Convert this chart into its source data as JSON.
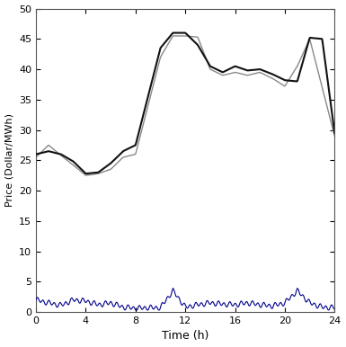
{
  "hours": [
    0,
    1,
    2,
    3,
    4,
    5,
    6,
    7,
    8,
    9,
    10,
    11,
    12,
    13,
    14,
    15,
    16,
    17,
    18,
    19,
    20,
    21,
    22,
    23,
    24
  ],
  "actual": [
    25.5,
    27.5,
    25.8,
    24.2,
    22.5,
    22.8,
    23.5,
    25.5,
    26.0,
    34.0,
    42.0,
    45.5,
    45.5,
    45.3,
    40.0,
    39.0,
    39.5,
    39.0,
    39.5,
    38.5,
    37.2,
    40.5,
    45.0,
    37.0,
    29.0
  ],
  "forecast": [
    26.0,
    26.5,
    26.0,
    24.8,
    22.8,
    23.0,
    24.5,
    26.5,
    27.5,
    35.5,
    43.5,
    46.0,
    46.0,
    44.0,
    40.5,
    39.5,
    40.5,
    39.8,
    40.0,
    39.2,
    38.2,
    38.0,
    45.2,
    45.0,
    29.5
  ],
  "error_hours": [
    0,
    1,
    2,
    3,
    4,
    5,
    6,
    7,
    8,
    9,
    10,
    11,
    12,
    13,
    14,
    15,
    16,
    17,
    18,
    19,
    20,
    21,
    22,
    23,
    24
  ],
  "error": [
    2.0,
    1.5,
    1.1,
    2.0,
    1.8,
    1.2,
    1.5,
    0.8,
    0.6,
    0.7,
    0.7,
    3.5,
    0.8,
    1.2,
    1.5,
    1.3,
    1.2,
    1.5,
    1.2,
    1.0,
    1.5,
    3.5,
    1.5,
    0.8,
    0.7
  ],
  "actual_color": "#888888",
  "forecast_color": "#111111",
  "error_color": "#00008B",
  "xlim": [
    0,
    24
  ],
  "ylim": [
    0,
    50
  ],
  "xticks": [
    0,
    4,
    8,
    12,
    16,
    20,
    24
  ],
  "yticks": [
    0,
    5,
    10,
    15,
    20,
    25,
    30,
    35,
    40,
    45,
    50
  ],
  "xlabel": "Time (h)",
  "ylabel": "Price (Dollar/MWh)",
  "actual_lw": 1.0,
  "forecast_lw": 1.5,
  "error_lw": 0.8,
  "bg_color": "#ffffff",
  "figw": 3.85,
  "figh": 3.86,
  "dpi": 100
}
